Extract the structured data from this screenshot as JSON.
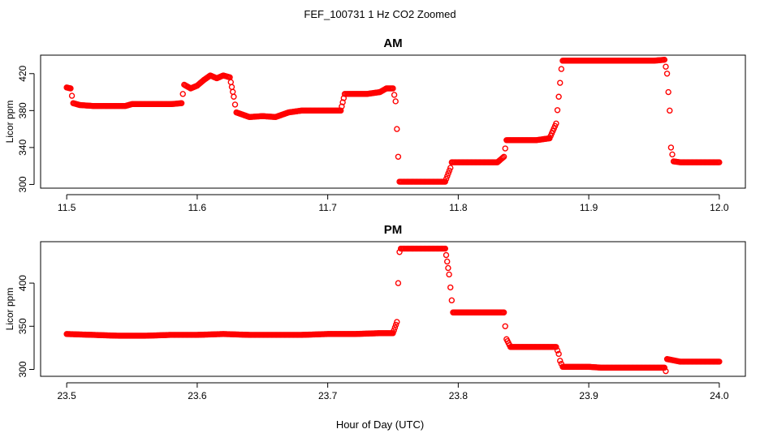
{
  "figure": {
    "title": "FEF_100731  1 Hz CO2 Zoomed",
    "xlabel": "Hour of Day (UTC)"
  },
  "colors": {
    "marker": "#ff0000",
    "axis": "#000000",
    "background": "#ffffff"
  },
  "chart_data": [
    {
      "type": "scatter",
      "title": "AM",
      "xlabel": "",
      "ylabel": "Licor ppm",
      "xlim": [
        11.48,
        12.02
      ],
      "ylim": [
        296,
        440
      ],
      "xticks": [
        11.5,
        11.6,
        11.7,
        11.8,
        11.9,
        12.0
      ],
      "xtick_labels": [
        "11.5",
        "11.6",
        "11.7",
        "11.8",
        "11.9",
        "12.0"
      ],
      "yticks": [
        300,
        340,
        380,
        420
      ],
      "ytick_labels": [
        "300",
        "340",
        "380",
        "420"
      ],
      "grid": false,
      "marker": "open-circle",
      "series": [
        {
          "x": [
            11.5,
            11.503,
            11.505,
            11.51,
            11.52,
            11.53,
            11.54,
            11.545,
            11.55,
            11.56,
            11.57,
            11.58,
            11.588,
            11.59,
            11.595,
            11.6,
            11.605,
            11.61,
            11.615,
            11.62,
            11.625,
            11.628,
            11.63,
            11.64,
            11.65,
            11.66,
            11.67,
            11.68,
            11.69,
            11.7,
            11.71,
            11.713,
            11.715,
            11.72,
            11.73,
            11.74,
            11.745,
            11.75,
            11.752,
            11.753,
            11.754,
            11.755,
            11.76,
            11.77,
            11.78,
            11.79,
            11.794,
            11.795,
            11.8,
            11.81,
            11.82,
            11.83,
            11.835,
            11.837,
            11.84,
            11.85,
            11.86,
            11.87,
            11.875,
            11.877,
            11.879,
            11.88,
            11.89,
            11.9,
            11.91,
            11.92,
            11.93,
            11.94,
            11.95,
            11.958,
            11.96,
            11.961,
            11.962,
            11.963,
            11.965,
            11.97,
            11.98,
            11.99,
            12.0
          ],
          "y": [
            405,
            404,
            388,
            386,
            385,
            385,
            385,
            385,
            387,
            387,
            387,
            387,
            388,
            408,
            404,
            407,
            413,
            418,
            415,
            418,
            416,
            395,
            378,
            373,
            374,
            373,
            378,
            380,
            380,
            380,
            380,
            398,
            398,
            398,
            398,
            400,
            404,
            404,
            390,
            360,
            330,
            303,
            303,
            303,
            303,
            303,
            318,
            324,
            324,
            324,
            324,
            324,
            330,
            348,
            348,
            348,
            348,
            350,
            366,
            395,
            425,
            434,
            434,
            434,
            434,
            434,
            434,
            434,
            434,
            435,
            420,
            400,
            380,
            340,
            325,
            324,
            324,
            324,
            324
          ]
        }
      ]
    },
    {
      "type": "scatter",
      "title": "PM",
      "xlabel": "Hour of Day (UTC)",
      "ylabel": "Licor ppm",
      "xlim": [
        23.48,
        24.02
      ],
      "ylim": [
        292,
        448
      ],
      "xticks": [
        23.5,
        23.6,
        23.7,
        23.8,
        23.9,
        24.0
      ],
      "xtick_labels": [
        "23.5",
        "23.6",
        "23.7",
        "23.8",
        "23.9",
        "24.0"
      ],
      "yticks": [
        300,
        350,
        400
      ],
      "ytick_labels": [
        "300",
        "350",
        "400"
      ],
      "grid": false,
      "marker": "open-circle",
      "series": [
        {
          "x": [
            23.5,
            23.52,
            23.54,
            23.56,
            23.58,
            23.6,
            23.62,
            23.64,
            23.66,
            23.68,
            23.7,
            23.72,
            23.74,
            23.75,
            23.753,
            23.754,
            23.755,
            23.756,
            23.76,
            23.77,
            23.78,
            23.79,
            23.793,
            23.795,
            23.796,
            23.8,
            23.81,
            23.82,
            23.83,
            23.835,
            23.836,
            23.837,
            23.84,
            23.85,
            23.86,
            23.87,
            23.875,
            23.877,
            23.878,
            23.88,
            23.89,
            23.9,
            23.91,
            23.92,
            23.93,
            23.94,
            23.95,
            23.958,
            23.959,
            23.96,
            23.97,
            23.98,
            23.99,
            24.0
          ],
          "y": [
            341,
            340,
            339,
            339,
            340,
            340,
            341,
            340,
            340,
            340,
            341,
            341,
            342,
            342,
            355,
            400,
            436,
            440,
            440,
            440,
            440,
            440,
            410,
            380,
            366,
            366,
            366,
            366,
            366,
            366,
            350,
            335,
            326,
            326,
            326,
            326,
            326,
            318,
            310,
            303,
            303,
            303,
            302,
            302,
            302,
            302,
            302,
            302,
            298,
            312,
            309,
            309,
            309,
            309
          ]
        }
      ]
    }
  ]
}
